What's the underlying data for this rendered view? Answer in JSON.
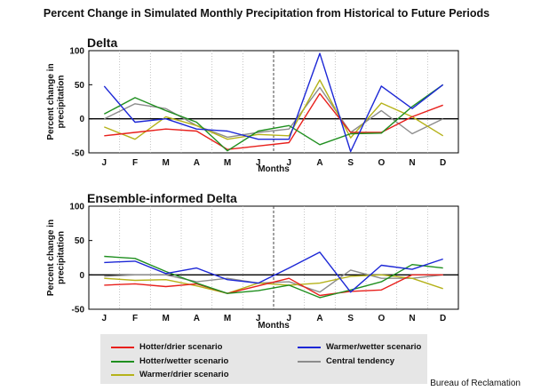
{
  "figure": {
    "title": "Percent Change in Simulated Monthly Precipitation from Historical to Future Periods",
    "credit": "Bureau of Reclamation"
  },
  "legend": {
    "hotter_drier": "Hotter/drier scenario",
    "hotter_wetter": "Hotter/wetter scenario",
    "warmer_drier": "Warmer/drier scenario",
    "warmer_wetter": "Warmer/wetter scenario",
    "central_tendency": "Central tendency"
  },
  "colors": {
    "hotter_drier": "#e8201c",
    "hotter_wetter": "#1f8f1f",
    "warmer_drier": "#b5b21a",
    "warmer_wetter": "#1c27d6",
    "central_tendency": "#8c8c8c"
  },
  "chart_data": [
    {
      "type": "line",
      "title": "Delta",
      "xlabel": "Months",
      "ylabel": "Percent change in precipitation",
      "categories": [
        "J",
        "F",
        "M",
        "A",
        "M",
        "J",
        "J",
        "A",
        "S",
        "O",
        "N",
        "D"
      ],
      "ylim": [
        -50,
        100
      ],
      "yticks": [
        -50,
        0,
        50,
        100
      ],
      "grid": false,
      "series": [
        {
          "name": "Hotter/drier scenario",
          "color": "#e8201c",
          "values": [
            -25,
            -20,
            -15,
            -18,
            -45,
            -40,
            -35,
            37,
            -20,
            -20,
            3,
            20
          ]
        },
        {
          "name": "Hotter/wetter scenario",
          "color": "#1f8f1f",
          "values": [
            7,
            31,
            12,
            -5,
            -47,
            -18,
            -10,
            -38,
            -22,
            -21,
            18,
            50
          ]
        },
        {
          "name": "Warmer/drier scenario",
          "color": "#b5b21a",
          "values": [
            -12,
            -30,
            3,
            -10,
            -30,
            -23,
            -25,
            57,
            -28,
            23,
            3,
            -25
          ]
        },
        {
          "name": "Warmer/wetter scenario",
          "color": "#1c27d6",
          "values": [
            48,
            -5,
            0,
            -15,
            -18,
            -30,
            -30,
            96,
            -48,
            48,
            15,
            50
          ]
        },
        {
          "name": "Central tendency",
          "color": "#8c8c8c",
          "values": [
            0,
            22,
            15,
            -10,
            -27,
            -20,
            -15,
            46,
            -20,
            12,
            -22,
            0
          ]
        }
      ]
    },
    {
      "type": "line",
      "title": "Ensemble-informed Delta",
      "xlabel": "Months",
      "ylabel": "Percent change in precipitation",
      "categories": [
        "J",
        "F",
        "M",
        "A",
        "M",
        "J",
        "J",
        "A",
        "S",
        "O",
        "N",
        "D"
      ],
      "ylim": [
        -50,
        100
      ],
      "yticks": [
        -50,
        0,
        50,
        100
      ],
      "grid": false,
      "series": [
        {
          "name": "Hotter/drier scenario",
          "color": "#e8201c",
          "values": [
            -15,
            -13,
            -17,
            -13,
            -27,
            -16,
            -5,
            -30,
            -24,
            -22,
            0,
            0
          ]
        },
        {
          "name": "Hotter/wetter scenario",
          "color": "#1f8f1f",
          "values": [
            27,
            24,
            5,
            -12,
            -27,
            -23,
            -15,
            -33,
            -22,
            -10,
            15,
            10
          ]
        },
        {
          "name": "Warmer/drier scenario",
          "color": "#b5b21a",
          "values": [
            -5,
            -8,
            -7,
            -16,
            -27,
            -12,
            -15,
            -12,
            -2,
            0,
            -5,
            -20
          ]
        },
        {
          "name": "Warmer/wetter scenario",
          "color": "#1c27d6",
          "values": [
            18,
            20,
            2,
            10,
            -7,
            -12,
            10,
            33,
            -25,
            14,
            8,
            23
          ]
        },
        {
          "name": "Central tendency",
          "color": "#8c8c8c",
          "values": [
            -2,
            0,
            0,
            -10,
            -5,
            -12,
            -10,
            -25,
            7,
            -5,
            -5,
            0
          ]
        }
      ]
    }
  ]
}
